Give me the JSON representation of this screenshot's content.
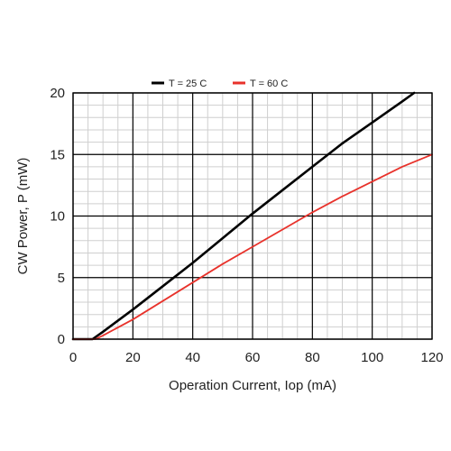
{
  "chart_data": {
    "type": "line",
    "xlabel": "Operation Current, Iop (mA)",
    "ylabel": "CW Power, P (mW)",
    "xlim": [
      0,
      120
    ],
    "ylim": [
      0,
      20
    ],
    "x_ticks": [
      0,
      20,
      40,
      60,
      80,
      100,
      120
    ],
    "y_ticks": [
      0,
      5,
      10,
      15,
      20
    ],
    "grid": true,
    "minor_grid": true,
    "legend_position": "top",
    "series": [
      {
        "name": "T = 25 C",
        "color": "#000000",
        "x": [
          0,
          6.5,
          10,
          20,
          30,
          40,
          50,
          60,
          70,
          80,
          90,
          100,
          110,
          114
        ],
        "y": [
          0,
          0,
          0.6,
          2.4,
          4.3,
          6.2,
          8.2,
          10.2,
          12.1,
          14.0,
          15.9,
          17.6,
          19.3,
          20
        ]
      },
      {
        "name": "T = 60 C",
        "color": "#e8322b",
        "x": [
          0,
          7.5,
          10,
          20,
          30,
          40,
          50,
          60,
          70,
          80,
          90,
          100,
          110,
          120
        ],
        "y": [
          0,
          0,
          0.3,
          1.6,
          3.1,
          4.6,
          6.1,
          7.5,
          8.9,
          10.3,
          11.6,
          12.8,
          14.0,
          15.0
        ]
      }
    ]
  }
}
